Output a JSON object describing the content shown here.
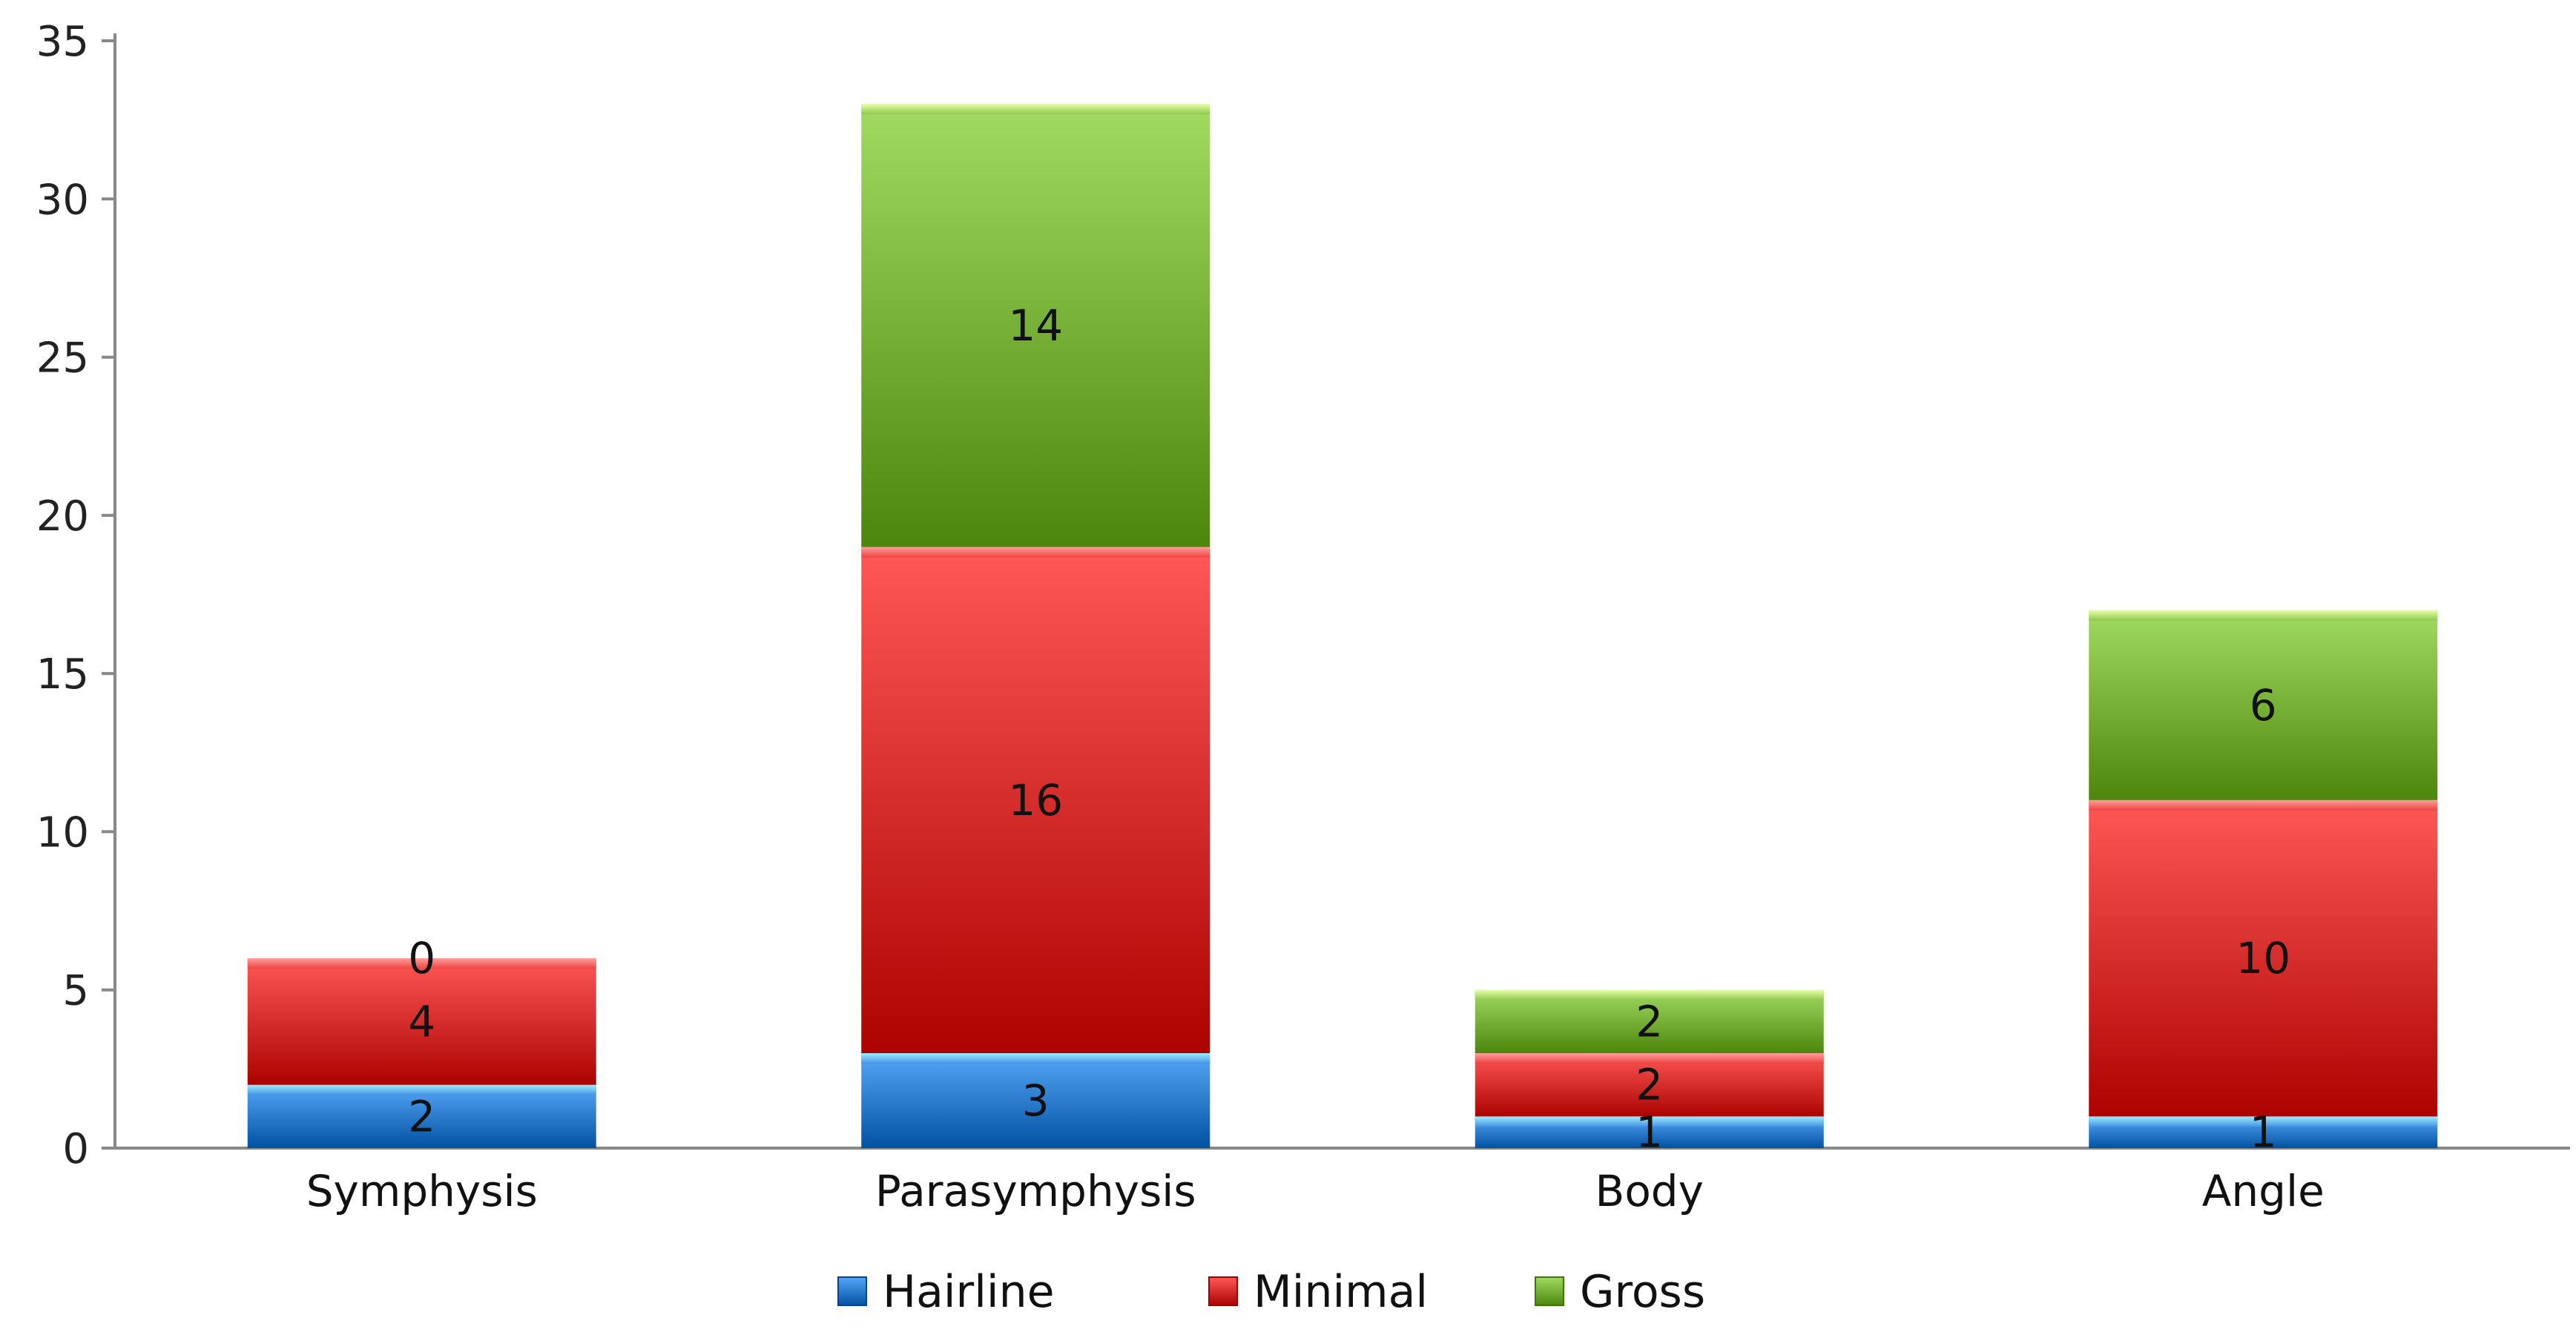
{
  "chart_data": {
    "type": "bar",
    "stacked": true,
    "categories": [
      "Symphysis",
      "Parasymphysis",
      "Body",
      "Angle"
    ],
    "series": [
      {
        "name": "Hairline",
        "values": [
          2,
          3,
          1,
          1
        ],
        "color": "#2f7fd1"
      },
      {
        "name": "Minimal",
        "values": [
          4,
          16,
          2,
          10
        ],
        "color": "#d9302e"
      },
      {
        "name": "Gross",
        "values": [
          0,
          14,
          2,
          6
        ],
        "color": "#7ab33a"
      }
    ],
    "ylim": [
      0,
      35
    ],
    "yticks": [
      0,
      5,
      10,
      15,
      20,
      25,
      30,
      35
    ],
    "ytick_labels": [
      "0",
      "5",
      "10",
      "15",
      "20",
      "25",
      "30",
      "35"
    ],
    "title": "",
    "xlabel": "",
    "ylabel": "",
    "grid": false,
    "legend_position": "bottom"
  }
}
